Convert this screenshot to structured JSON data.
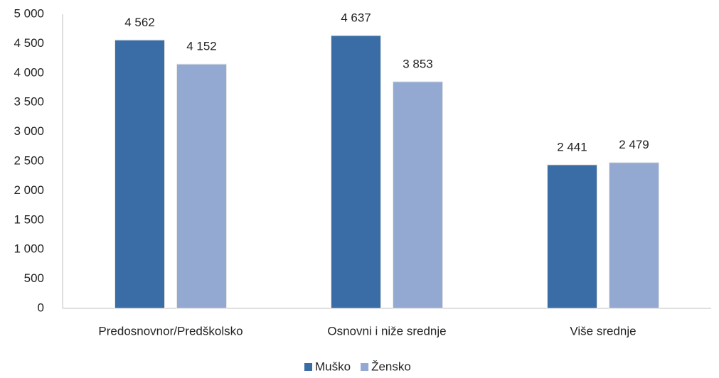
{
  "chart_data": {
    "type": "bar",
    "categories": [
      "Predosnovnor/Predškolsko",
      "Osnovni i niže srednje",
      "Više srednje"
    ],
    "series": [
      {
        "name": "Muško",
        "color": "#3a6ca5",
        "values": [
          4562,
          4637,
          2441
        ],
        "value_labels": [
          "4 562",
          "4 637",
          "2 441"
        ]
      },
      {
        "name": "Žensko",
        "color": "#93a9d1",
        "values": [
          4152,
          3853,
          2479
        ],
        "value_labels": [
          "4 152",
          "3 853",
          "2 479"
        ]
      }
    ],
    "ylim": [
      0,
      5000
    ],
    "yticks": [
      0,
      500,
      {
        "value": 1000,
        "label": "1 000"
      },
      {
        "value": 1500,
        "label": "1 500"
      },
      {
        "value": 2000,
        "label": "2 000"
      },
      {
        "value": 2500,
        "label": "2 500"
      },
      {
        "value": 3000,
        "label": "3 000"
      },
      {
        "value": 3500,
        "label": "3 500"
      },
      {
        "value": 4000,
        "label": "4 000"
      },
      {
        "value": 4500,
        "label": "4 500"
      },
      {
        "value": 5000,
        "label": "5 000"
      }
    ],
    "grid": false,
    "legend": "bottom"
  }
}
